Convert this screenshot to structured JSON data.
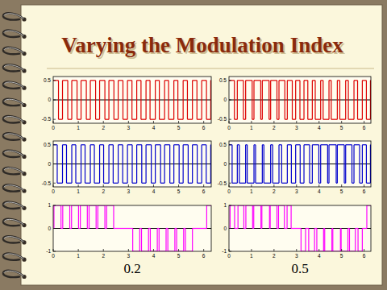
{
  "title": "Varying the Modulation Index",
  "chart_data": [
    {
      "type": "line",
      "line_style": "step",
      "color": "#dd0000",
      "xlim": [
        0,
        6.3
      ],
      "xticks": [
        0,
        1,
        2,
        3,
        4,
        5,
        6
      ],
      "ylim": [
        -0.6,
        0.6
      ],
      "yticks": [
        -0.5,
        0,
        0.5
      ],
      "x": [
        0,
        0.21,
        0.37,
        0.58,
        0.74,
        0.95,
        1.11,
        1.32,
        1.48,
        1.69,
        1.85,
        2.06,
        2.22,
        2.42,
        2.59,
        2.78,
        2.96,
        3.14,
        3.33,
        3.5,
        3.7,
        3.86,
        4.07,
        4.23,
        4.44,
        4.6,
        4.81,
        4.97,
        5.18,
        5.35,
        5.55,
        5.73,
        5.92,
        6.11,
        6.28
      ],
      "values": [
        0.5,
        -0.5,
        0.5,
        -0.5,
        0.5,
        -0.5,
        0.5,
        -0.5,
        0.5,
        -0.5,
        0.5,
        -0.5,
        0.5,
        -0.5,
        0.5,
        -0.5,
        0.5,
        -0.5,
        0.5,
        -0.5,
        0.5,
        -0.5,
        0.5,
        -0.5,
        0.5,
        -0.5,
        0.5,
        -0.5,
        0.5,
        -0.5,
        0.5,
        -0.5,
        0.5,
        -0.5,
        0.5
      ]
    },
    {
      "type": "line",
      "line_style": "step",
      "color": "#dd0000",
      "xlim": [
        0,
        6.3
      ],
      "xticks": [
        0,
        1,
        2,
        3,
        4,
        5,
        6
      ],
      "ylim": [
        -0.6,
        0.6
      ],
      "yticks": [
        -0.5,
        0,
        0.5
      ],
      "x": [
        0,
        0.24,
        0.37,
        0.64,
        0.74,
        1.03,
        1.11,
        1.41,
        1.48,
        1.78,
        1.85,
        2.13,
        2.22,
        2.48,
        2.59,
        2.81,
        2.96,
        3.15,
        3.33,
        3.5,
        3.7,
        3.83,
        4.07,
        4.18,
        4.44,
        4.54,
        4.81,
        4.92,
        5.18,
        5.3,
        5.55,
        5.71,
        5.92,
        6.1,
        6.28
      ],
      "values": [
        0.5,
        -0.5,
        0.5,
        -0.5,
        0.5,
        -0.5,
        0.5,
        -0.5,
        0.5,
        -0.5,
        0.5,
        -0.5,
        0.5,
        -0.5,
        0.5,
        -0.5,
        0.5,
        -0.5,
        0.5,
        -0.5,
        0.5,
        -0.5,
        0.5,
        -0.5,
        0.5,
        -0.5,
        0.5,
        -0.5,
        0.5,
        -0.5,
        0.5,
        -0.5,
        0.5,
        -0.5,
        0.5
      ]
    },
    {
      "type": "line",
      "line_style": "step",
      "color": "#0000cc",
      "xlim": [
        0,
        6.3
      ],
      "xticks": [
        0,
        1,
        2,
        3,
        4,
        5,
        6
      ],
      "ylim": [
        -0.6,
        0.6
      ],
      "yticks": [
        -0.5,
        0,
        0.5
      ],
      "x": [
        0,
        0.16,
        0.37,
        0.53,
        0.74,
        0.9,
        1.11,
        1.27,
        1.48,
        1.64,
        1.85,
        2.01,
        2.22,
        2.39,
        2.59,
        2.77,
        2.96,
        3.15,
        3.33,
        3.53,
        3.7,
        3.91,
        4.07,
        4.28,
        4.44,
        4.65,
        4.81,
        5.02,
        5.18,
        5.38,
        5.55,
        5.74,
        5.92,
        6.1,
        6.28
      ],
      "values": [
        0.5,
        -0.5,
        0.5,
        -0.5,
        0.5,
        -0.5,
        0.5,
        -0.5,
        0.5,
        -0.5,
        0.5,
        -0.5,
        0.5,
        -0.5,
        0.5,
        -0.5,
        0.5,
        -0.5,
        0.5,
        -0.5,
        0.5,
        -0.5,
        0.5,
        -0.5,
        0.5,
        -0.5,
        0.5,
        -0.5,
        0.5,
        -0.5,
        0.5,
        -0.5,
        0.5,
        -0.5,
        0.5
      ]
    },
    {
      "type": "line",
      "line_style": "step",
      "color": "#0000cc",
      "xlim": [
        0,
        6.3
      ],
      "xticks": [
        0,
        1,
        2,
        3,
        4,
        5,
        6
      ],
      "ylim": [
        -0.6,
        0.6
      ],
      "yticks": [
        -0.5,
        0,
        0.5
      ],
      "x": [
        0,
        0.14,
        0.37,
        0.46,
        0.74,
        0.81,
        1.11,
        1.18,
        1.48,
        1.55,
        1.85,
        1.94,
        2.22,
        2.34,
        2.59,
        2.77,
        2.96,
        3.16,
        3.33,
        3.58,
        3.7,
        3.99,
        4.07,
        4.38,
        4.44,
        4.76,
        4.81,
        5.12,
        5.18,
        5.46,
        5.55,
        5.8,
        5.92,
        6.1,
        6.28
      ],
      "values": [
        0.5,
        -0.5,
        0.5,
        -0.5,
        0.5,
        -0.5,
        0.5,
        -0.5,
        0.5,
        -0.5,
        0.5,
        -0.5,
        0.5,
        -0.5,
        0.5,
        -0.5,
        0.5,
        -0.5,
        0.5,
        -0.5,
        0.5,
        -0.5,
        0.5,
        -0.5,
        0.5,
        -0.5,
        0.5,
        -0.5,
        0.5,
        -0.5,
        0.5,
        -0.5,
        0.5,
        -0.5,
        0.5
      ]
    },
    {
      "type": "line",
      "line_style": "step",
      "color": "#ff00ff",
      "x_label": "0.2",
      "xlim": [
        0,
        6.3
      ],
      "xticks": [
        0,
        1,
        2,
        3,
        4,
        5,
        6
      ],
      "ylim": [
        -1,
        1
      ],
      "yticks": [
        -1,
        0,
        1
      ],
      "x": [
        0,
        0.03,
        0.31,
        0.38,
        0.66,
        0.73,
        1.01,
        1.08,
        1.36,
        1.43,
        1.71,
        1.78,
        2.06,
        2.13,
        2.41,
        3.17,
        3.45,
        3.52,
        3.8,
        3.87,
        4.15,
        4.22,
        4.5,
        4.57,
        4.85,
        4.92,
        5.2,
        5.27,
        5.55,
        6.12,
        6.28
      ],
      "values": [
        0,
        1,
        0,
        1,
        0,
        1,
        0,
        1,
        0,
        1,
        0,
        1,
        0,
        1,
        0,
        -1,
        0,
        -1,
        0,
        -1,
        0,
        -1,
        0,
        -1,
        0,
        -1,
        0,
        -1,
        0,
        1,
        1
      ]
    },
    {
      "type": "line",
      "line_style": "step",
      "color": "#ff00ff",
      "x_label": "0.5",
      "xlim": [
        0,
        6.3
      ],
      "xticks": [
        0,
        1,
        2,
        3,
        4,
        5,
        6
      ],
      "ylim": [
        -1,
        1
      ],
      "yticks": [
        -1,
        0,
        1
      ],
      "x": [
        0,
        0.05,
        0.25,
        0.4,
        0.66,
        0.75,
        1.05,
        1.1,
        1.42,
        1.46,
        1.8,
        1.83,
        2.13,
        2.2,
        2.46,
        2.58,
        2.76,
        3.2,
        3.4,
        3.54,
        3.8,
        3.9,
        4.2,
        4.25,
        4.57,
        4.61,
        4.95,
        4.98,
        5.28,
        5.35,
        5.61,
        5.73,
        5.92,
        6.12,
        6.28
      ],
      "values": [
        0,
        1,
        0,
        1,
        0,
        1,
        0,
        1,
        0,
        1,
        0,
        1,
        0,
        1,
        0,
        1,
        0,
        -1,
        0,
        -1,
        0,
        -1,
        0,
        -1,
        0,
        -1,
        0,
        -1,
        0,
        -1,
        0,
        -1,
        0,
        1,
        1
      ]
    }
  ]
}
